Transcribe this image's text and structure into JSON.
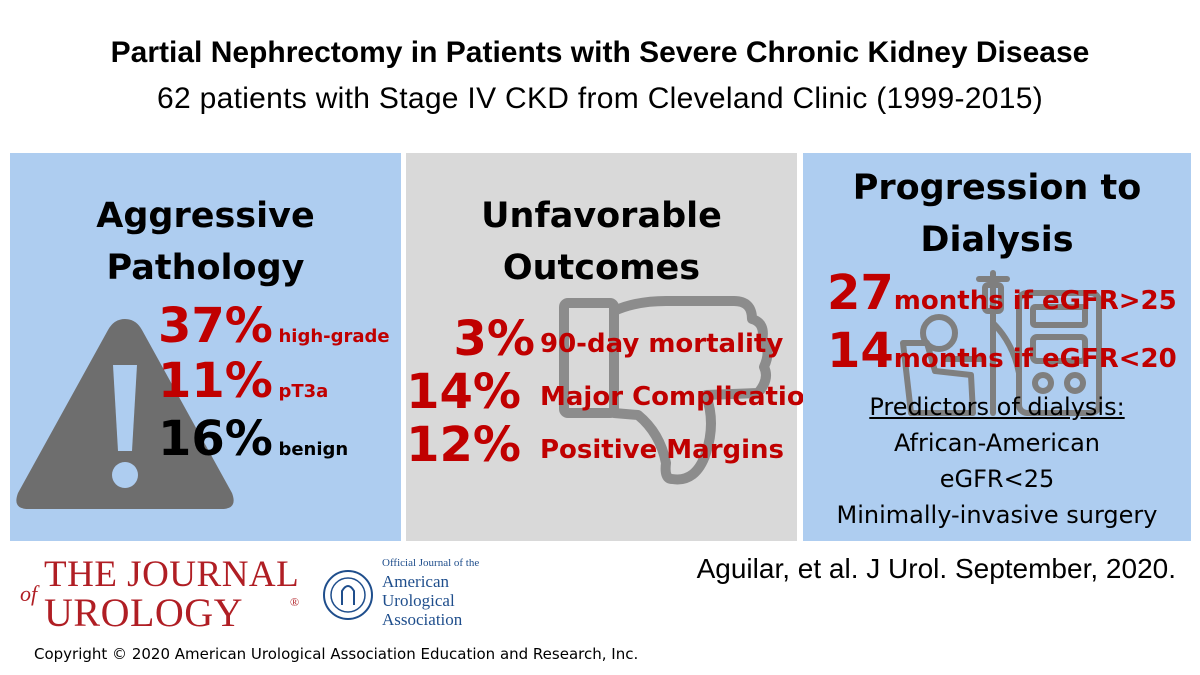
{
  "header": {
    "title": "Partial Nephrectomy in Patients with Severe Chronic Kidney Disease",
    "subtitle": "62 patients with Stage IV CKD from Cleveland Clinic (1999-2015)"
  },
  "panel_pathology": {
    "heading_line1": "Aggressive",
    "heading_line2": "Pathology",
    "stats": [
      {
        "value": "37%",
        "label": "high-grade"
      },
      {
        "value": "11%",
        "label": "pT3a"
      },
      {
        "value": "16%",
        "label": "benign"
      }
    ]
  },
  "panel_outcomes": {
    "heading_line1": "Unfavorable",
    "heading_line2": "Outcomes",
    "stats": [
      {
        "value": "3%",
        "label": "90-day mortality"
      },
      {
        "value": "14%",
        "label": "Major Complication"
      },
      {
        "value": "12%",
        "label": "Positive Margins"
      }
    ]
  },
  "panel_dialysis": {
    "heading_line1": "Progression to",
    "heading_line2": "Dialysis",
    "stats": [
      {
        "value": "27",
        "label": "months if eGFR>25"
      },
      {
        "value": "14",
        "label": "months if eGFR<20"
      }
    ],
    "predictors_title": "Predictors of dialysis:",
    "predictors": [
      "African-American",
      "eGFR<25",
      "Minimally-invasive surgery"
    ]
  },
  "footer": {
    "citation": "Aguilar, et al. J Urol. September, 2020.",
    "copyright": "Copyright © 2020 American Urological Association Education and Research, Inc.",
    "journal_logo": {
      "of": "of",
      "line1": "THE JOURNAL",
      "line2": "UROLOGY",
      "reg": "®"
    },
    "aua_logo": {
      "official": "Official Journal of the",
      "line1": "American",
      "line2": "Urological",
      "line3": "Association"
    }
  },
  "colors": {
    "accent_red": "#c00000",
    "panel_blue": "#aecdf0",
    "panel_gray": "#d9d9d9",
    "icon_gray": "#6e6e6e",
    "brand_red": "#b01e24"
  }
}
